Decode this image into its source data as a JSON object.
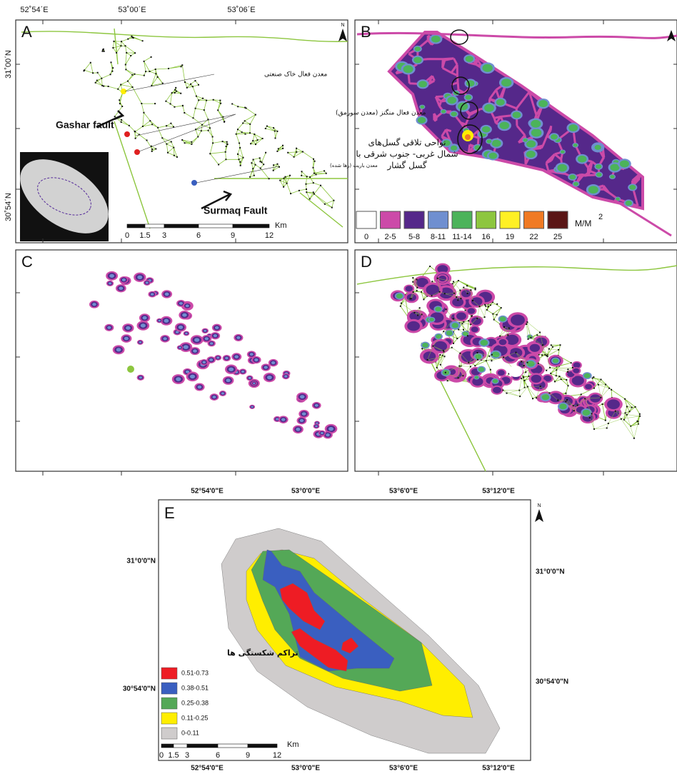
{
  "figure": {
    "panel_a": {
      "label": "A",
      "north": "N",
      "top_coordinates": [
        "52˚54΄E",
        "53˚00΄E",
        "53˚06΄E"
      ],
      "left_coordinates": [
        "31˚00΄N",
        "30˚54΄N"
      ],
      "annotations": {
        "gashar_fault": "Gashar fault",
        "surmaq_fault": "Surmaq Fault",
        "mine_industrial_soil": "معدن فعال خاک صنعتی",
        "mine_manganese": "معدن فعال منگنز (معدن سورمق)",
        "mine_barite": "معدن باریت (رها شده)"
      },
      "scale": {
        "ticks": [
          "0",
          "1.5",
          "3",
          "6",
          "9",
          "12"
        ],
        "unit": "Km"
      }
    },
    "panel_b": {
      "label": "B",
      "annotation": [
        "نواحی تلاقی گسل‌های",
        "شمال غربی- جنوب شرقی با",
        "گسل گشار"
      ],
      "legend": {
        "items": [
          {
            "label": "0",
            "color": "#ffffff"
          },
          {
            "label": "2-5",
            "color": "#cc4aa8"
          },
          {
            "label": "5-8",
            "color": "#55288a"
          },
          {
            "label": "8-11",
            "color": "#6f8fd0"
          },
          {
            "label": "11-14",
            "color": "#4cb35a"
          },
          {
            "label": "16",
            "color": "#8dc63f"
          },
          {
            "label": "19",
            "color": "#fff024"
          },
          {
            "label": "22",
            "color": "#f07a24"
          },
          {
            "label": "25",
            "color": "#5a1616"
          }
        ],
        "unit": "M/M",
        "unit_exponent": "2"
      }
    },
    "panel_c": {
      "label": "C"
    },
    "panel_d": {
      "label": "D"
    },
    "panel_e": {
      "label": "E",
      "north": "N",
      "top_coordinates": [
        "52°54'0\"E",
        "53°0'0\"E",
        "53°6'0\"E",
        "53°12'0\"E"
      ],
      "bottom_coordinates": [
        "52°54'0\"E",
        "53°0'0\"E",
        "53°6'0\"E",
        "53°12'0\"E"
      ],
      "left_coordinates": [
        "31°0'0\"N",
        "30°54'0\"N"
      ],
      "right_coordinates": [
        "31°0'0\"N",
        "30°54'0\"N"
      ],
      "legend": {
        "title": "تراکم شکستگی ها",
        "items": [
          {
            "label": "0.51-0.73",
            "color": "#ee1c24"
          },
          {
            "label": "0.38-0.51",
            "color": "#3a5fc0"
          },
          {
            "label": "0.25-0.38",
            "color": "#54a857"
          },
          {
            "label": "0.11-0.25",
            "color": "#ffee00"
          },
          {
            "label": "0-0.11",
            "color": "#cfcccc"
          }
        ]
      },
      "scale": {
        "ticks": [
          "0",
          "1.5",
          "3",
          "6",
          "9",
          "12"
        ],
        "unit": "Km"
      }
    }
  }
}
